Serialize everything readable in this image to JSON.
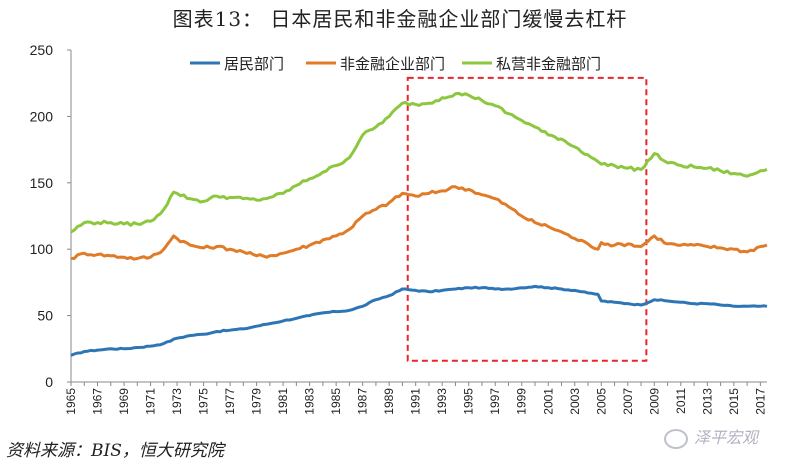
{
  "title": "图表13：   日本居民和非金融企业部门缓慢去杠杆",
  "source": "资料来源：BIS，恒大研究院",
  "watermark": "泽平宏观",
  "chart_data": {
    "type": "line",
    "title": "图表13：   日本居民和非金融企业部门缓慢去杠杆",
    "xlabel": "",
    "ylabel": "",
    "ylim": [
      0,
      250
    ],
    "yticks": [
      0,
      50,
      100,
      150,
      200,
      250
    ],
    "xlim": [
      1965,
      2017.5
    ],
    "xticks": [
      "1965",
      "1967",
      "1969",
      "1971",
      "1973",
      "1975",
      "1977",
      "1979",
      "1981",
      "1983",
      "1985",
      "1987",
      "1989",
      "1991",
      "1993",
      "1995",
      "1997",
      "1999",
      "2001",
      "2003",
      "2005",
      "2007",
      "2009",
      "2011",
      "2013",
      "2015",
      "2017"
    ],
    "grid": false,
    "legend_position": "top",
    "highlight_box": {
      "x_start": 1990.4,
      "x_end": 2008.4,
      "y_start": 16,
      "y_end": 229,
      "style": "red dashed"
    },
    "series": [
      {
        "name": "居民部门",
        "color": "#2e75b6",
        "x": [
          1965,
          1966,
          1967,
          1968,
          1969,
          1970,
          1971,
          1972,
          1973,
          1974,
          1975,
          1976,
          1977,
          1978,
          1979,
          1980,
          1981,
          1982,
          1983,
          1984,
          1985,
          1986,
          1987,
          1988,
          1989,
          1990,
          1991,
          1992,
          1993,
          1994,
          1995,
          1996,
          1997,
          1998,
          1999,
          2000,
          2001,
          2002,
          2003,
          2004,
          2004.75,
          2005,
          2006,
          2007,
          2008,
          2009,
          2010,
          2011,
          2012,
          2013,
          2014,
          2015,
          2016,
          2017,
          2017.5
        ],
        "values": [
          20,
          23,
          24,
          25,
          25,
          26,
          27,
          29,
          33,
          35,
          36,
          38,
          39,
          40,
          42,
          44,
          46,
          48,
          50,
          52,
          53,
          54,
          57,
          62,
          65,
          70,
          69,
          68,
          69,
          70,
          71,
          71,
          70,
          70,
          71,
          72,
          71,
          70,
          69,
          67,
          66,
          61,
          60,
          59,
          58,
          62,
          61,
          60,
          59,
          59,
          58,
          57,
          57,
          57,
          57
        ]
      },
      {
        "name": "非金融企业部门",
        "color": "#e07b28",
        "x": [
          1965,
          1966,
          1967,
          1968,
          1969,
          1970,
          1971,
          1972,
          1972.75,
          1973,
          1974,
          1975,
          1976,
          1977,
          1978,
          1979,
          1980,
          1981,
          1982,
          1983,
          1984,
          1985,
          1986,
          1987,
          1988,
          1989,
          1990,
          1991,
          1992,
          1993,
          1994,
          1995,
          1996,
          1997,
          1998,
          1999,
          2000,
          2001,
          2002,
          2003,
          2004,
          2004.75,
          2005,
          2006,
          2007,
          2008,
          2009,
          2010,
          2011,
          2012,
          2013,
          2014,
          2015,
          2016,
          2017,
          2017.5
        ],
        "values": [
          93,
          97,
          96,
          95,
          94,
          93,
          94,
          100,
          110,
          108,
          103,
          101,
          102,
          100,
          98,
          95,
          95,
          97,
          100,
          103,
          107,
          110,
          115,
          125,
          130,
          135,
          142,
          140,
          142,
          144,
          147,
          145,
          141,
          138,
          132,
          125,
          120,
          117,
          113,
          108,
          104,
          100,
          105,
          103,
          104,
          102,
          110,
          104,
          103,
          103,
          102,
          101,
          100,
          98,
          102,
          103
        ]
      },
      {
        "name": "私营非金融部门",
        "color": "#8dc63f",
        "x": [
          1965,
          1966,
          1967,
          1968,
          1969,
          1970,
          1971,
          1972,
          1972.75,
          1973,
          1974,
          1975,
          1976,
          1977,
          1978,
          1979,
          1980,
          1981,
          1982,
          1983,
          1984,
          1985,
          1986,
          1987,
          1988,
          1989,
          1990,
          1991,
          1992,
          1993,
          1994,
          1995,
          1996,
          1997,
          1998,
          1999,
          2000,
          2001,
          2002,
          2003,
          2004,
          2004.75,
          2005,
          2006,
          2007,
          2008,
          2009,
          2010,
          2011,
          2012,
          2013,
          2014,
          2015,
          2016,
          2017,
          2017.5
        ],
        "values": [
          113,
          120,
          120,
          120,
          119,
          119,
          121,
          130,
          143,
          142,
          138,
          136,
          140,
          139,
          138,
          137,
          139,
          142,
          148,
          153,
          158,
          163,
          169,
          186,
          192,
          200,
          210,
          209,
          210,
          214,
          217,
          216,
          212,
          208,
          202,
          197,
          192,
          186,
          183,
          177,
          171,
          166,
          164,
          163,
          161,
          160,
          172,
          165,
          163,
          162,
          161,
          159,
          157,
          155,
          159,
          160
        ]
      }
    ]
  }
}
